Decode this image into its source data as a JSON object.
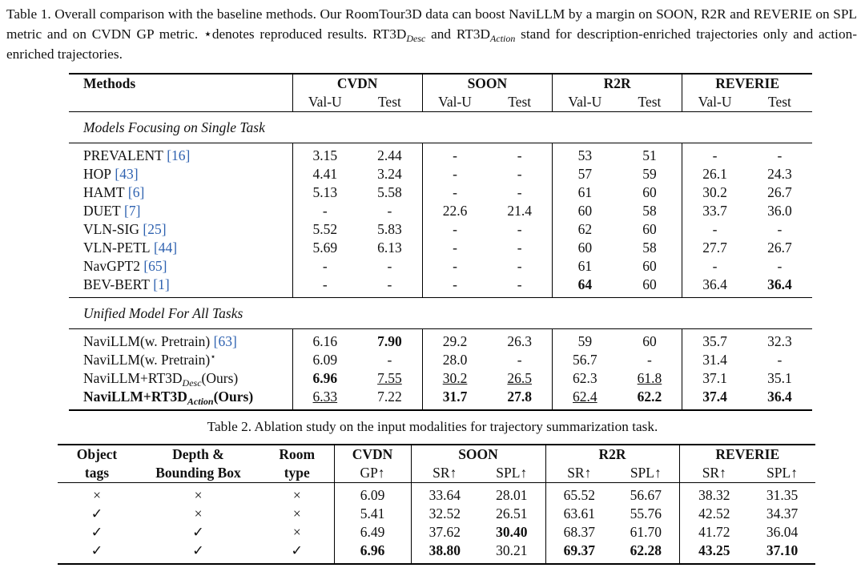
{
  "table1": {
    "caption": [
      "Table 1.  Overall comparison with the baseline methods.  Our RoomTour3D data can boost NaviLLM by a margin on SOON, R2R and REVERIE on SPL metric and on CVDN GP metric.  ⋆denotes reproduced results.  RT3D",
      {
        "sub": "Desc"
      },
      " and RT3D",
      {
        "sub": "Action"
      },
      " stand for description-enriched trajectories only and action-enriched trajectories."
    ],
    "columns": {
      "methods": "Methods",
      "groups": [
        {
          "name": "CVDN",
          "subs": [
            "Val-U",
            "Test"
          ]
        },
        {
          "name": "SOON",
          "subs": [
            "Val-U",
            "Test"
          ]
        },
        {
          "name": "R2R",
          "subs": [
            "Val-U",
            "Test"
          ]
        },
        {
          "name": "REVERIE",
          "subs": [
            "Val-U",
            "Test"
          ]
        }
      ]
    },
    "sections": [
      {
        "title": "Models Focusing on Single Task",
        "rows": [
          {
            "method": {
              "name": "PREVALENT",
              "ref": "[16]"
            },
            "cells": [
              "3.15",
              "2.44",
              "-",
              "-",
              "53",
              "51",
              "-",
              "-"
            ]
          },
          {
            "method": {
              "name": "HOP",
              "ref": "[43]"
            },
            "cells": [
              "4.41",
              "3.24",
              "-",
              "-",
              "57",
              "59",
              "26.1",
              "24.3"
            ]
          },
          {
            "method": {
              "name": "HAMT",
              "ref": "[6]"
            },
            "cells": [
              "5.13",
              "5.58",
              "-",
              "-",
              "61",
              "60",
              "30.2",
              "26.7"
            ]
          },
          {
            "method": {
              "name": "DUET",
              "ref": "[7]"
            },
            "cells": [
              "-",
              "-",
              "22.6",
              "21.4",
              "60",
              "58",
              "33.7",
              "36.0"
            ]
          },
          {
            "method": {
              "name": "VLN-SIG",
              "ref": "[25]"
            },
            "cells": [
              "5.52",
              "5.83",
              "-",
              "-",
              "62",
              "60",
              "-",
              "-"
            ]
          },
          {
            "method": {
              "name": "VLN-PETL",
              "ref": "[44]"
            },
            "cells": [
              "5.69",
              "6.13",
              "-",
              "-",
              "60",
              "58",
              "27.7",
              "26.7"
            ]
          },
          {
            "method": {
              "name": "NavGPT2",
              "ref": "[65]"
            },
            "cells": [
              "-",
              "-",
              "-",
              "-",
              "61",
              "60",
              "-",
              "-"
            ]
          },
          {
            "method": {
              "name": "BEV-BERT",
              "ref": "[1]"
            },
            "cells": [
              "-",
              "-",
              "-",
              "-",
              {
                "text": "64",
                "style": "bold"
              },
              "60",
              "36.4",
              {
                "text": "36.4",
                "style": "bold"
              }
            ]
          }
        ]
      },
      {
        "title": "Unified Model For All Tasks",
        "rows": [
          {
            "method": {
              "name": "NaviLLM(w. Pretrain)",
              "ref": "[63]"
            },
            "cells": [
              "6.16",
              {
                "text": "7.90",
                "style": "bold"
              },
              "29.2",
              "26.3",
              "59",
              "60",
              "35.7",
              "32.3"
            ]
          },
          {
            "method": {
              "name": "NaviLLM(w. Pretrain)",
              "sup": "⋆"
            },
            "cells": [
              "6.09",
              "-",
              "28.0",
              "-",
              "56.7",
              "-",
              "31.4",
              "-"
            ]
          },
          {
            "method": {
              "name": "NaviLLM+RT3D",
              "sub": "Desc",
              "after": "(Ours)"
            },
            "cells": [
              {
                "text": "6.96",
                "style": "bold"
              },
              {
                "text": "7.55",
                "style": "underline"
              },
              {
                "text": "30.2",
                "style": "underline"
              },
              {
                "text": "26.5",
                "style": "underline"
              },
              "62.3",
              {
                "text": "61.8",
                "style": "underline"
              },
              "37.1",
              "35.1"
            ]
          },
          {
            "method": {
              "name": "NaviLLM+RT3D",
              "sub": "Action",
              "after": "(Ours)",
              "style": "bold"
            },
            "cells": [
              {
                "text": "6.33",
                "style": "underline"
              },
              "7.22",
              {
                "text": "31.7",
                "style": "bold"
              },
              {
                "text": "27.8",
                "style": "bold"
              },
              {
                "text": "62.4",
                "style": "underline"
              },
              {
                "text": "62.2",
                "style": "bold"
              },
              {
                "text": "37.4",
                "style": "bold"
              },
              {
                "text": "36.4",
                "style": "bold"
              }
            ]
          }
        ]
      }
    ]
  },
  "table2": {
    "caption": "Table 2. Ablation study on the input modalities for trajectory summarization task.",
    "header": {
      "left": [
        [
          "Object",
          "tags"
        ],
        [
          "Depth &",
          "Bounding Box"
        ],
        [
          "Room",
          "type"
        ]
      ],
      "groups": [
        {
          "name": "CVDN",
          "subs": [
            "GP↑"
          ]
        },
        {
          "name": "SOON",
          "subs": [
            "SR↑",
            "SPL↑"
          ]
        },
        {
          "name": "R2R",
          "subs": [
            "SR↑",
            "SPL↑"
          ]
        },
        {
          "name": "REVERIE",
          "subs": [
            "SR↑",
            "SPL↑"
          ]
        }
      ]
    },
    "rows": [
      [
        "×",
        "×",
        "×",
        "6.09",
        "33.64",
        "28.01",
        "65.52",
        "56.67",
        "38.32",
        "31.35"
      ],
      [
        "✓",
        "×",
        "×",
        "5.41",
        "32.52",
        "26.51",
        "63.61",
        "55.76",
        "42.52",
        "34.37"
      ],
      [
        "✓",
        "✓",
        "×",
        "6.49",
        "37.62",
        {
          "text": "30.40",
          "style": "bold"
        },
        "68.37",
        "61.70",
        "41.72",
        "36.04"
      ],
      [
        "✓",
        "✓",
        "✓",
        {
          "text": "6.96",
          "style": "bold"
        },
        {
          "text": "38.80",
          "style": "bold"
        },
        "30.21",
        {
          "text": "69.37",
          "style": "bold"
        },
        {
          "text": "62.28",
          "style": "bold"
        },
        {
          "text": "43.25",
          "style": "bold"
        },
        {
          "text": "37.10",
          "style": "bold"
        }
      ]
    ]
  }
}
